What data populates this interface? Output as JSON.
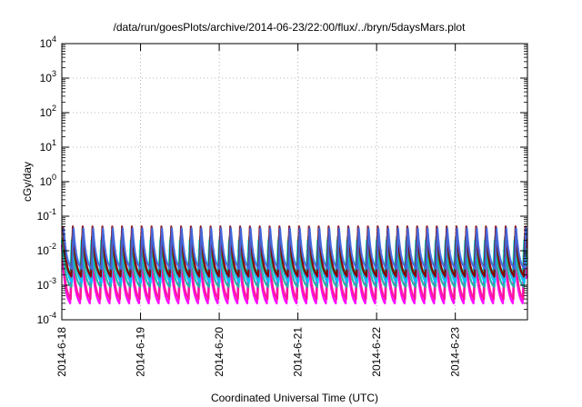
{
  "chart_data": {
    "type": "line",
    "title": "/data/run/goesPlots/archive/2014-06-23/22:00/flux/../bryn/5daysMars.plot",
    "xlabel": "Coordinated Universal Time (UTC)",
    "ylabel": "cGy/day",
    "x_ticks": [
      "2014-6-18",
      "2014-6-19",
      "2014-6-20",
      "2014-6-21",
      "2014-6-22",
      "2014-6-23"
    ],
    "xlim": [
      "2014-06-18",
      "2014-06-23T22:00"
    ],
    "y_scale": "log",
    "ylim": [
      0.0001,
      10000
    ],
    "y_ticks": [
      {
        "base": "10",
        "exp": "-4"
      },
      {
        "base": "10",
        "exp": "-3"
      },
      {
        "base": "10",
        "exp": "-2"
      },
      {
        "base": "10",
        "exp": "-1"
      },
      {
        "base": "10",
        "exp": "0"
      },
      {
        "base": "10",
        "exp": "1"
      },
      {
        "base": "10",
        "exp": "2"
      },
      {
        "base": "10",
        "exp": "3"
      },
      {
        "base": "10",
        "exp": "4"
      }
    ],
    "grid": true,
    "legend": "none",
    "oscillation": {
      "period_hours": 3,
      "cycles": 47
    },
    "series": [
      {
        "color": "#ff00ff",
        "peak": 0.015,
        "trough": 0.0003
      },
      {
        "color": "#ff1493",
        "peak": 0.012,
        "trough": 0.0004
      },
      {
        "color": "#20b2aa",
        "peak": 0.01,
        "trough": 0.0009
      },
      {
        "color": "#00bfff",
        "peak": 0.03,
        "trough": 0.0012
      },
      {
        "color": "#00ffff",
        "peak": 0.02,
        "trough": 0.0025
      },
      {
        "color": "#2e8b57",
        "peak": 0.025,
        "trough": 0.002
      },
      {
        "color": "#8b0000",
        "peak": 0.05,
        "trough": 0.0018
      },
      {
        "color": "#4169e1",
        "peak": 0.045,
        "trough": 0.003
      }
    ]
  }
}
